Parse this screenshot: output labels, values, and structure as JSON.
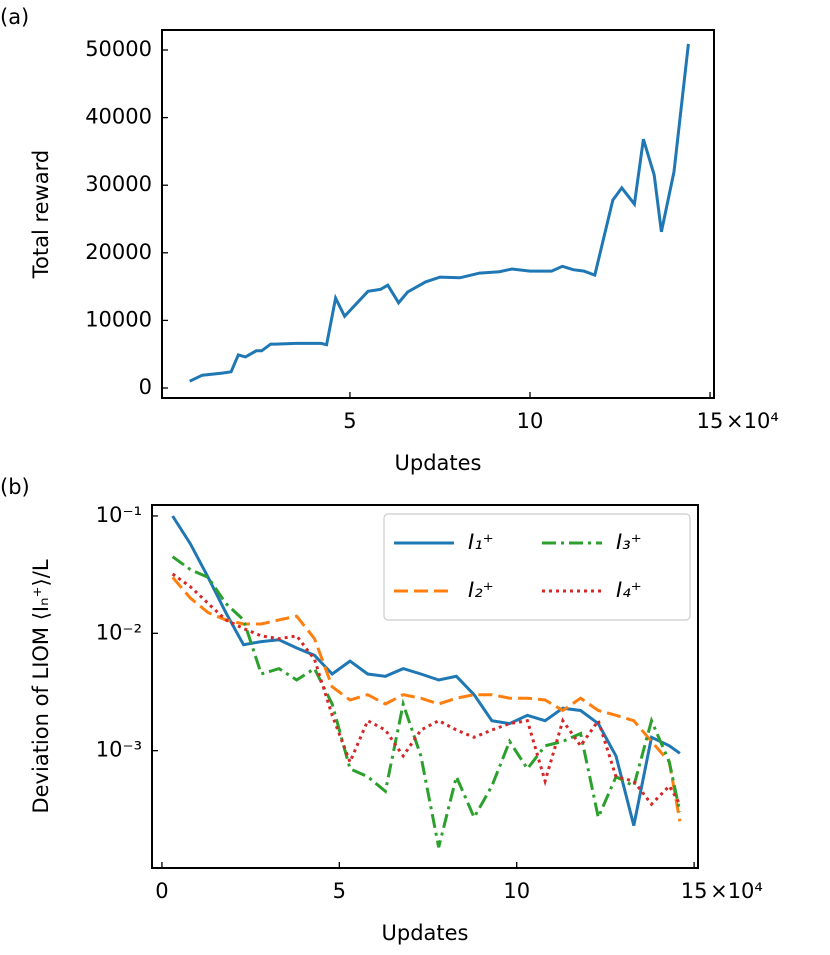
{
  "chart_data": [
    {
      "type": "line",
      "panel_label": "(a)",
      "xlabel": "Updates",
      "ylabel": "Total reward",
      "x_offset_label": "×10⁴",
      "x": [
        0.55,
        0.9,
        1.45,
        1.7,
        1.9,
        2.1,
        2.4,
        2.55,
        2.8,
        2.95,
        3.5,
        4.2,
        4.35,
        4.6,
        4.85,
        5.5,
        5.85,
        6.05,
        6.35,
        6.6,
        7.1,
        7.5,
        8.05,
        8.6,
        9.15,
        9.5,
        10.0,
        10.6,
        10.9,
        11.2,
        11.5,
        11.8,
        12.3,
        12.55,
        12.9,
        13.15,
        13.45,
        13.65,
        14.0,
        14.4
      ],
      "series": [
        {
          "color": "#1f77b4",
          "values": [
            1000,
            1900,
            2200,
            2400,
            4900,
            4600,
            5500,
            5500,
            6500,
            6500,
            6600,
            6600,
            6400,
            13300,
            10600,
            14300,
            14600,
            15200,
            12600,
            14200,
            15700,
            16400,
            16300,
            17000,
            17200,
            17600,
            17300,
            17300,
            18000,
            17500,
            17300,
            16700,
            27800,
            29600,
            27200,
            36800,
            31500,
            23100,
            32000,
            50900
          ]
        }
      ],
      "xlim": [
        -0.22,
        15.11
      ],
      "ylim": [
        -1480,
        52960
      ],
      "xticks": [
        5,
        10,
        15
      ],
      "yticks": [
        0,
        10000,
        20000,
        30000,
        40000,
        50000
      ]
    },
    {
      "type": "line",
      "panel_label": "(b)",
      "xlabel": "Updates",
      "ylabel": "Deviation of LIOM  ⟨Iₙ⁺⟩/L",
      "x_offset_label": "×10⁴",
      "log_y": true,
      "legend": "upper right",
      "legend_columns": 2,
      "x": [
        0.3,
        0.8,
        1.3,
        1.8,
        2.3,
        2.8,
        3.3,
        3.8,
        4.3,
        4.8,
        5.3,
        5.8,
        6.3,
        6.8,
        7.3,
        7.8,
        8.3,
        8.8,
        9.3,
        9.8,
        10.3,
        10.8,
        11.3,
        11.8,
        12.3,
        12.8,
        13.3,
        13.8,
        14.3,
        14.6
      ],
      "series": [
        {
          "name": "I₁⁺",
          "color": "#1f77b4",
          "dash": "solid",
          "values": [
            0.1,
            0.058,
            0.03,
            0.015,
            0.008,
            0.0085,
            0.0088,
            0.0075,
            0.0065,
            0.0045,
            0.0058,
            0.0045,
            0.0043,
            0.005,
            0.0045,
            0.004,
            0.0043,
            0.003,
            0.0018,
            0.0017,
            0.002,
            0.0018,
            0.0023,
            0.0022,
            0.0017,
            0.0009,
            0.00023,
            0.0013,
            0.0011,
            0.00095
          ]
        },
        {
          "name": "I₂⁺",
          "color": "#ff7f0e",
          "dash": "dashed",
          "values": [
            0.03,
            0.02,
            0.015,
            0.013,
            0.012,
            0.012,
            0.013,
            0.014,
            0.009,
            0.0035,
            0.0027,
            0.003,
            0.0025,
            0.003,
            0.0028,
            0.0025,
            0.0028,
            0.003,
            0.003,
            0.0028,
            0.0028,
            0.0027,
            0.0022,
            0.0028,
            0.0022,
            0.002,
            0.0018,
            0.0012,
            0.0008,
            0.00025
          ]
        },
        {
          "name": "I₃⁺",
          "color": "#2ca02c",
          "dash": "dashdot",
          "values": [
            0.045,
            0.035,
            0.03,
            0.018,
            0.013,
            0.0045,
            0.005,
            0.004,
            0.005,
            0.0025,
            0.0007,
            0.0006,
            0.00045,
            0.0025,
            0.0009,
            0.00015,
            0.0006,
            0.00027,
            0.0005,
            0.0012,
            0.0007,
            0.0011,
            0.0012,
            0.0014,
            0.00027,
            0.0006,
            0.0005,
            0.0018,
            0.0008,
            0.0003
          ]
        },
        {
          "name": "I₄⁺",
          "color": "#d62728",
          "dash": "dotted",
          "values": [
            0.032,
            0.025,
            0.018,
            0.013,
            0.011,
            0.0095,
            0.009,
            0.0095,
            0.006,
            0.002,
            0.0008,
            0.0018,
            0.0015,
            0.0009,
            0.0015,
            0.0018,
            0.0015,
            0.0013,
            0.0015,
            0.0017,
            0.0018,
            0.00055,
            0.0018,
            0.0011,
            0.0018,
            0.0006,
            0.00055,
            0.00035,
            0.0005,
            0.00035
          ]
        }
      ],
      "xlim": [
        -0.28,
        15.11
      ],
      "ylim": [
        0.0001,
        0.124
      ],
      "xticks": [
        0,
        5,
        10,
        15
      ],
      "yticks": [
        {
          "value": 0.001,
          "label": "10⁻³"
        },
        {
          "value": 0.01,
          "label": "10⁻²"
        },
        {
          "value": 0.1,
          "label": "10⁻¹"
        }
      ]
    }
  ]
}
